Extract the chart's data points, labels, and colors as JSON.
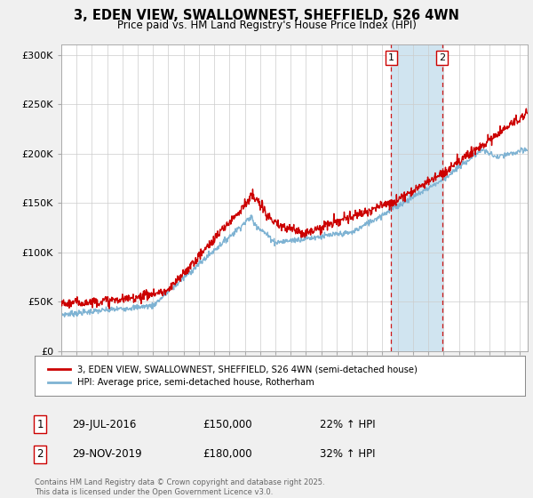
{
  "title": "3, EDEN VIEW, SWALLOWNEST, SHEFFIELD, S26 4WN",
  "subtitle": "Price paid vs. HM Land Registry's House Price Index (HPI)",
  "legend_label_red": "3, EDEN VIEW, SWALLOWNEST, SHEFFIELD, S26 4WN (semi-detached house)",
  "legend_label_blue": "HPI: Average price, semi-detached house, Rotherham",
  "sale1_date_str": "29-JUL-2016",
  "sale1_price_str": "£150,000",
  "sale1_hpi_str": "22% ↑ HPI",
  "sale1_year": 2016.57,
  "sale1_price": 150000,
  "sale2_date_str": "29-NOV-2019",
  "sale2_price_str": "£180,000",
  "sale2_hpi_str": "32% ↑ HPI",
  "sale2_year": 2019.91,
  "sale2_price": 180000,
  "copyright": "Contains HM Land Registry data © Crown copyright and database right 2025.\nThis data is licensed under the Open Government Licence v3.0.",
  "ylim_max": 300000,
  "ytick_max": 300000,
  "xlim_start": 1995,
  "xlim_end": 2025.5,
  "bg_color": "#f0f0f0",
  "plot_bg_color": "#ffffff",
  "red_color": "#cc0000",
  "blue_color": "#7fb3d3",
  "dashed_color": "#cc0000",
  "shade_color": "#d0e4f0"
}
